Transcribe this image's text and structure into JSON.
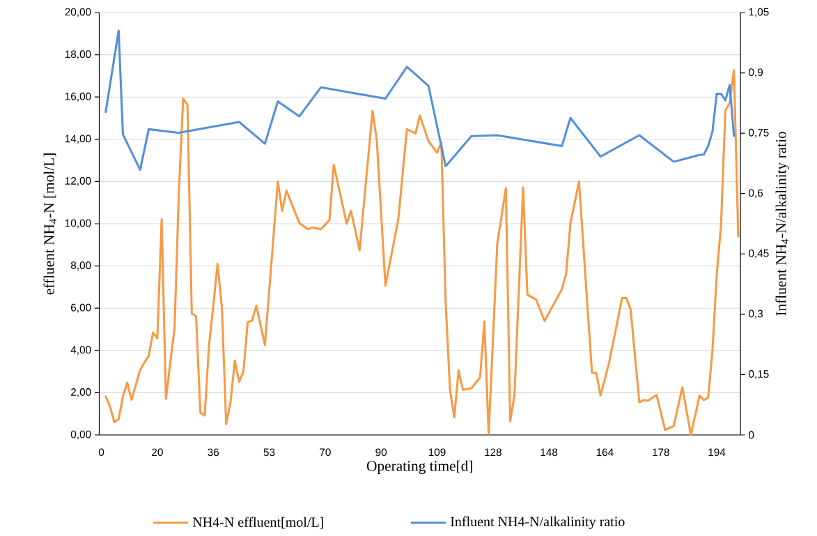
{
  "chart_data": {
    "type": "line",
    "xlabel": "Operating time[d]",
    "ylabel": "effluent NH$_{4}$-N  [mol/L]",
    "y2label": "Influent NH$_{4}$-N/alkalinity ratio",
    "categories": [
      "0",
      null,
      null,
      null,
      null,
      null,
      null,
      null,
      null,
      null,
      null,
      null,
      null,
      "20",
      null,
      null,
      null,
      null,
      null,
      null,
      null,
      null,
      null,
      null,
      null,
      null,
      "36",
      null,
      null,
      null,
      null,
      null,
      null,
      null,
      null,
      null,
      null,
      null,
      null,
      "53",
      null,
      null,
      null,
      null,
      null,
      null,
      null,
      null,
      null,
      null,
      null,
      null,
      "70",
      null,
      null,
      null,
      null,
      null,
      null,
      null,
      null,
      null,
      null,
      null,
      null,
      "90",
      null,
      null,
      null,
      null,
      null,
      null,
      null,
      null,
      null,
      null,
      null,
      null,
      "109",
      null,
      null,
      null,
      null,
      null,
      null,
      null,
      null,
      null,
      null,
      null,
      null,
      "128",
      null,
      null,
      null,
      null,
      null,
      null,
      null,
      null,
      null,
      null,
      null,
      null,
      "148",
      null,
      null,
      null,
      null,
      null,
      null,
      null,
      null,
      null,
      null,
      null,
      null,
      "164",
      null,
      null,
      null,
      null,
      null,
      null,
      null,
      null,
      null,
      null,
      null,
      null,
      "178",
      null,
      null,
      null,
      null,
      null,
      null,
      null,
      null,
      null,
      null,
      null,
      null,
      "194",
      null,
      null,
      null,
      null,
      null
    ],
    "series": [
      {
        "name": "NH4-N effluent[mol/L]",
        "color": "#f79a45",
        "values": [
          null,
          1.82,
          1.34,
          0.61,
          0.74,
          1.82,
          2.47,
          1.66,
          null,
          3.08,
          3.43,
          3.75,
          4.84,
          4.58,
          10.21,
          1.71,
          3.41,
          5.04,
          11.49,
          15.92,
          15.64,
          5.75,
          5.61,
          1.06,
          0.92,
          4.23,
          6.1,
          8.1,
          6.03,
          0.51,
          1.54,
          3.52,
          2.51,
          2.99,
          5.34,
          5.41,
          6.12,
          null,
          4.26,
          null,
          null,
          12.0,
          10.61,
          11.57,
          null,
          null,
          10.03,
          null,
          9.74,
          9.82,
          null,
          9.74,
          null,
          10.17,
          12.79,
          null,
          null,
          10.0,
          10.61,
          null,
          8.74,
          null,
          null,
          15.34,
          13.96,
          null,
          7.06,
          null,
          null,
          10.21,
          null,
          14.48,
          null,
          14.28,
          15.12,
          null,
          13.92,
          null,
          13.37,
          13.85,
          6.3,
          2.17,
          0.83,
          3.06,
          2.14,
          null,
          2.22,
          null,
          2.72,
          5.38,
          0.05,
          null,
          9.06,
          null,
          11.68,
          0.65,
          1.89,
          null,
          11.72,
          6.64,
          null,
          6.41,
          null,
          5.4,
          null,
          null,
          null,
          6.9,
          7.62,
          10.02,
          null,
          12.0,
          null,
          null,
          2.94,
          2.94,
          1.87,
          null,
          3.43,
          null,
          null,
          6.48,
          6.48,
          5.93,
          null,
          1.55,
          1.65,
          1.62,
          null,
          1.9,
          null,
          0.24,
          null,
          0.42,
          null,
          2.25,
          null,
          0,
          null,
          1.87,
          1.65,
          1.76,
          3.98,
          7.59,
          9.95,
          15.36,
          15.71,
          17.27,
          9.4
        ]
      },
      {
        "name": "Influent NH4-N/alkalinity ratio",
        "color": "#5390d9",
        "axis": "y2",
        "values": [
          null,
          0.803,
          null,
          null,
          1.005,
          0.747,
          null,
          null,
          null,
          0.659,
          null,
          0.76,
          null,
          null,
          null,
          null,
          null,
          null,
          0.751,
          null,
          null,
          null,
          null,
          null,
          null,
          null,
          null,
          null,
          null,
          null,
          null,
          null,
          0.778,
          null,
          null,
          null,
          null,
          null,
          0.724,
          null,
          null,
          0.829,
          null,
          null,
          null,
          null,
          0.792,
          null,
          null,
          null,
          null,
          0.864,
          null,
          null,
          null,
          null,
          null,
          null,
          null,
          null,
          null,
          null,
          null,
          null,
          null,
          null,
          0.836,
          null,
          null,
          null,
          null,
          0.915,
          null,
          null,
          null,
          null,
          0.868,
          null,
          null,
          null,
          0.668,
          null,
          null,
          null,
          null,
          null,
          0.743,
          null,
          null,
          null,
          null,
          null,
          0.745,
          null,
          null,
          null,
          null,
          null,
          null,
          null,
          null,
          null,
          null,
          null,
          null,
          null,
          null,
          0.718,
          null,
          0.788,
          null,
          null,
          null,
          null,
          null,
          null,
          0.692,
          null,
          null,
          null,
          null,
          null,
          null,
          null,
          null,
          0.745,
          null,
          null,
          null,
          null,
          null,
          null,
          null,
          0.679,
          null,
          null,
          null,
          null,
          null,
          0.696,
          0.697,
          0.718,
          0.754,
          0.848,
          0.848,
          0.832,
          0.87,
          0.743,
          null
        ]
      }
    ],
    "ylim": [
      0,
      20
    ],
    "yticks": [
      {
        "value": 0,
        "label": "0,00"
      },
      {
        "value": 2,
        "label": "2,00"
      },
      {
        "value": 4,
        "label": "4,00"
      },
      {
        "value": 6,
        "label": "6,00"
      },
      {
        "value": 8,
        "label": "8,00"
      },
      {
        "value": 10,
        "label": "10,00"
      },
      {
        "value": 12,
        "label": "12,00"
      },
      {
        "value": 14,
        "label": "14,00"
      },
      {
        "value": 16,
        "label": "16,00"
      },
      {
        "value": 18,
        "label": "18,00"
      },
      {
        "value": 20,
        "label": "20,00"
      }
    ],
    "y2lim": [
      0,
      1.05
    ],
    "y2ticks": [
      0,
      {
        "value": 0.15,
        "label": "0,15"
      },
      {
        "value": 0.3,
        "label": "0,3"
      },
      {
        "value": 0.45,
        "label": "0,45"
      },
      {
        "value": 0.6,
        "label": "0,6"
      },
      {
        "value": 0.75,
        "label": "0,75"
      },
      {
        "value": 0.9,
        "label": "0,9"
      },
      {
        "value": 1.05,
        "label": "1,05"
      }
    ],
    "grid": "y",
    "legend": "bottom"
  }
}
